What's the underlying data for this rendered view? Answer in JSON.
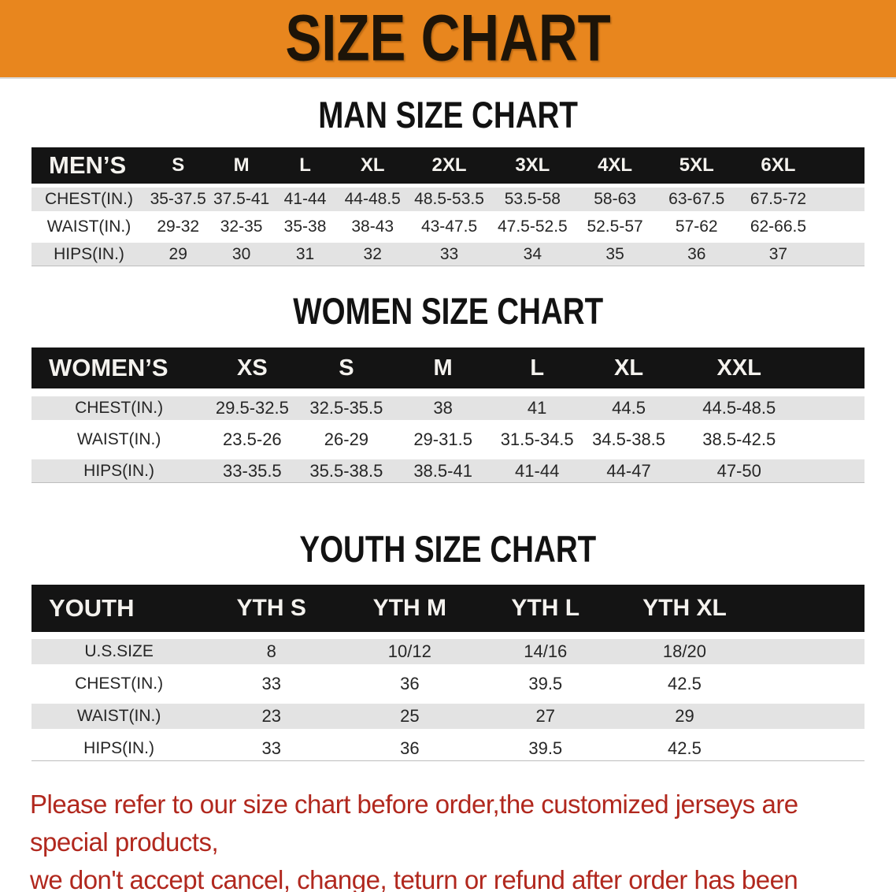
{
  "banner": {
    "title": "SIZE CHART",
    "bg_color": "#E8861E",
    "text_color": "#1D1408"
  },
  "colors": {
    "header_bar": "#141414",
    "row_stripe": "#E3E3E3",
    "footer_text": "#B1281E"
  },
  "man_section": {
    "heading": "MAN SIZE CHART",
    "table": {
      "header_label": "MEN’S",
      "columns": [
        "S",
        "M",
        "L",
        "XL",
        "2XL",
        "3XL",
        "4XL",
        "5XL",
        "6XL"
      ],
      "rows": [
        {
          "label": "CHEST(IN.)",
          "values": [
            "35-37.5",
            "37.5-41",
            "41-44",
            "44-48.5",
            "48.5-53.5",
            "53.5-58",
            "58-63",
            "63-67.5",
            "67.5-72"
          ]
        },
        {
          "label": "WAIST(IN.)",
          "values": [
            "29-32",
            "32-35",
            "35-38",
            "38-43",
            "43-47.5",
            "47.5-52.5",
            "52.5-57",
            "57-62",
            "62-66.5"
          ]
        },
        {
          "label": "HIPS(IN.)",
          "values": [
            "29",
            "30",
            "31",
            "32",
            "33",
            "34",
            "35",
            "36",
            "37"
          ]
        }
      ]
    }
  },
  "women_section": {
    "heading": "WOMEN SIZE CHART",
    "table": {
      "header_label": "WOMEN’S",
      "columns": [
        "XS",
        "S",
        "M",
        "L",
        "XL",
        "XXL"
      ],
      "rows": [
        {
          "label": "CHEST(IN.)",
          "values": [
            "29.5-32.5",
            "32.5-35.5",
            "38",
            "41",
            "44.5",
            "44.5-48.5"
          ]
        },
        {
          "label": "WAIST(IN.)",
          "values": [
            "23.5-26",
            "26-29",
            "29-31.5",
            "31.5-34.5",
            "34.5-38.5",
            "38.5-42.5"
          ]
        },
        {
          "label": "HIPS(IN.)",
          "values": [
            "33-35.5",
            "35.5-38.5",
            "38.5-41",
            "41-44",
            "44-47",
            "47-50"
          ]
        }
      ]
    }
  },
  "youth_section": {
    "heading": "YOUTH SIZE CHART",
    "table": {
      "header_label": "YOUTH",
      "columns": [
        "YTH S",
        "YTH M",
        "YTH L",
        "YTH XL"
      ],
      "rows": [
        {
          "label": "U.S.SIZE",
          "values": [
            "8",
            "10/12",
            "14/16",
            "18/20"
          ]
        },
        {
          "label": "CHEST(IN.)",
          "values": [
            "33",
            "36",
            "39.5",
            "42.5"
          ]
        },
        {
          "label": "WAIST(IN.)",
          "values": [
            "23",
            "25",
            "27",
            "29"
          ]
        },
        {
          "label": "HIPS(IN.)",
          "values": [
            "33",
            "36",
            "39.5",
            "42.5"
          ]
        }
      ]
    }
  },
  "footer": {
    "line1": "Please refer to our size chart before order,the customized jerseys are special products,",
    "line2": "we don't accept cancel, change, teturn or refund after order has been placed!"
  }
}
